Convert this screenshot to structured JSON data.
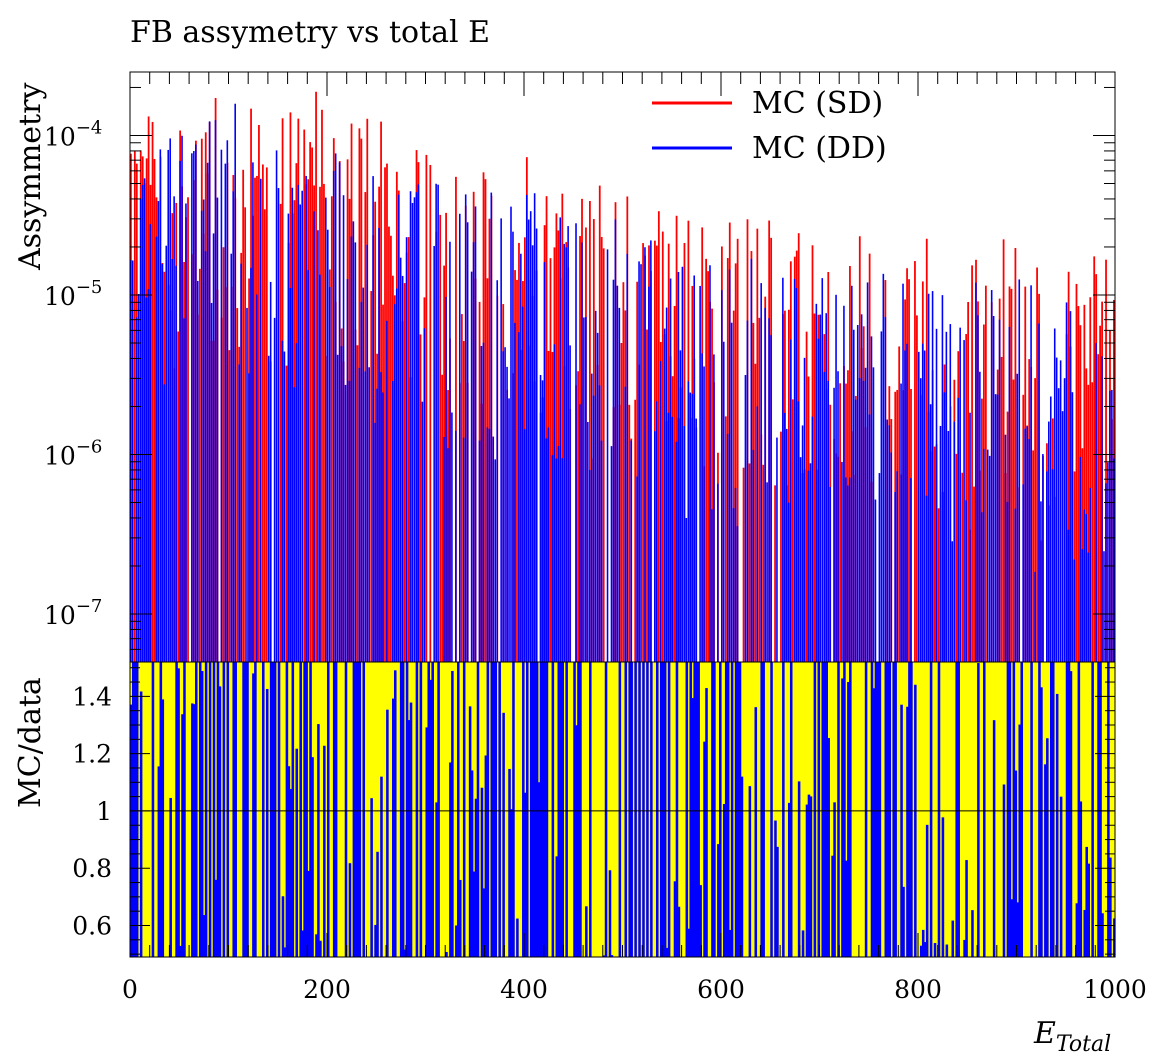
{
  "chart_data": [
    {
      "panel": "upper",
      "type": "bar",
      "title": "FB assymetry vs total E",
      "ylabel": "Assymmetry",
      "xlabel": "",
      "xlim": [
        0,
        1000
      ],
      "ylim": [
        5e-08,
        0.00025
      ],
      "ylog": true,
      "xticks": [
        0,
        200,
        400,
        600,
        800,
        1000
      ],
      "xtick_labels": [
        "0",
        "200",
        "400",
        "600",
        "800",
        "1000"
      ],
      "ytick_labels": [
        {
          "value": 1e-07,
          "base": "10",
          "exp": "−7"
        },
        {
          "value": 1e-06,
          "base": "10",
          "exp": "−6"
        },
        {
          "value": 1e-05,
          "base": "10",
          "exp": "−5"
        },
        {
          "value": 0.0001,
          "base": "10",
          "exp": "−4"
        }
      ],
      "legend": {
        "placement": "top-right"
      },
      "bins": 500,
      "series": [
        {
          "name": "MC (SD)",
          "color": "#ff0000",
          "trend": {
            "x": [
              0,
              100,
              200,
              300,
              400,
              500,
              600,
              700,
              800,
              900,
              1000
            ],
            "y": [
              8e-05,
              9e-05,
              9e-05,
              5e-05,
              3.5e-05,
              2.2e-05,
              1.6e-05,
              1.4e-05,
              1.2e-05,
              1.1e-05,
              1e-05
            ]
          }
        },
        {
          "name": "MC (DD)",
          "color": "#0000ff",
          "trend": {
            "x": [
              0,
              100,
              200,
              300,
              400,
              500,
              600,
              700,
              800,
              900,
              1000
            ],
            "y": [
              7e-05,
              7.5e-05,
              5e-05,
              3e-05,
              2.2e-05,
              1.4e-05,
              1e-05,
              8e-06,
              7e-06,
              6.5e-06,
              6e-06
            ]
          }
        }
      ]
    },
    {
      "panel": "ratio",
      "type": "bar",
      "ylabel": "MC/data",
      "xlabel": "E_Total",
      "xlabel_main": "E",
      "xlabel_sub": "Total",
      "xlim": [
        0,
        1000
      ],
      "ylim": [
        0.49,
        1.52
      ],
      "yticks": [
        0.6,
        0.8,
        1,
        1.2,
        1.4
      ],
      "ytick_labels": [
        "0.6",
        "0.8",
        "1",
        "1.2",
        "1.4"
      ],
      "reference_line": 1,
      "background_color": "#ffff00",
      "bar_color": "#0000ff",
      "bins": 500
    }
  ]
}
